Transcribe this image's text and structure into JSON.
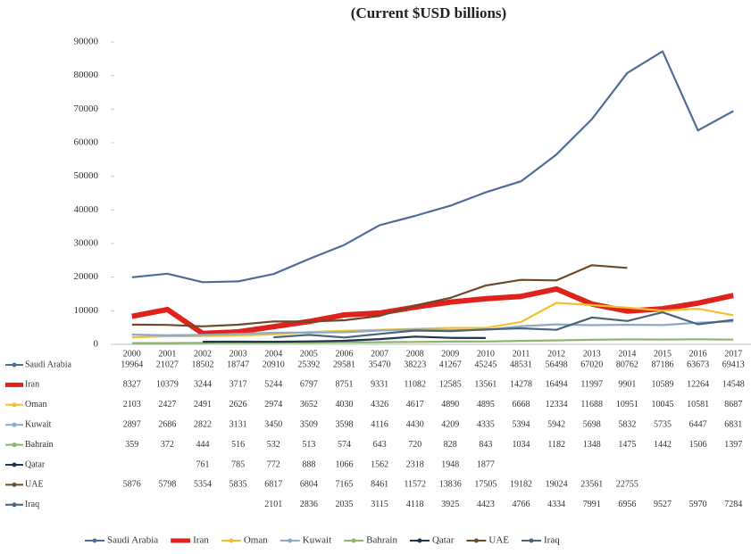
{
  "chart_data": {
    "type": "line",
    "title": "(Current $USD billions)",
    "categories": [
      "2000",
      "2001",
      "2002",
      "2003",
      "2004",
      "2005",
      "2006",
      "2007",
      "2008",
      "2009",
      "2010",
      "2011",
      "2012",
      "2013",
      "2014",
      "2015",
      "2016",
      "2017"
    ],
    "ylim": [
      0,
      90000
    ],
    "yticks": [
      0,
      10000,
      20000,
      30000,
      40000,
      50000,
      60000,
      70000,
      80000,
      90000
    ],
    "grid": false,
    "series": [
      {
        "name": "Saudi Arabia",
        "color": "#4f6d96",
        "values": [
          19964,
          21027,
          18502,
          18747,
          20910,
          25392,
          29581,
          35470,
          38223,
          41267,
          45245,
          48531,
          56498,
          67020,
          80762,
          87186,
          63673,
          69413
        ]
      },
      {
        "name": "Iran",
        "color": "#e0221d",
        "values": [
          8327,
          10379,
          3244,
          3717,
          5244,
          6797,
          8751,
          9331,
          11082,
          12585,
          13561,
          14278,
          16494,
          11997,
          9901,
          10589,
          12264,
          14548
        ]
      },
      {
        "name": "Oman",
        "color": "#f2c12e",
        "values": [
          2103,
          2427,
          2491,
          2626,
          2974,
          3652,
          4030,
          4326,
          4617,
          4890,
          4895,
          6668,
          12334,
          11688,
          10951,
          10045,
          10581,
          8687
        ]
      },
      {
        "name": "Kuwait",
        "color": "#8ea9c8",
        "values": [
          2897,
          2686,
          2822,
          3131,
          3450,
          3509,
          3598,
          4116,
          4430,
          4209,
          4335,
          5394,
          5942,
          5698,
          5832,
          5735,
          6447,
          6831
        ]
      },
      {
        "name": "Bahrain",
        "color": "#8fb56a",
        "values": [
          359,
          372,
          444,
          516,
          532,
          513,
          574,
          643,
          720,
          828,
          843,
          1034,
          1182,
          1348,
          1475,
          1442,
          1506,
          1397
        ]
      },
      {
        "name": "Qatar",
        "color": "#1f3550",
        "values": [
          null,
          null,
          761,
          785,
          772,
          888,
          1066,
          1562,
          2318,
          1948,
          1877,
          null,
          null,
          null,
          null,
          null,
          null,
          null
        ]
      },
      {
        "name": "UAE",
        "color": "#6b4a2a",
        "values": [
          5876,
          5798,
          5354,
          5835,
          6817,
          6804,
          7165,
          8461,
          11572,
          13836,
          17505,
          19182,
          19024,
          23561,
          22755,
          null,
          null,
          null
        ]
      },
      {
        "name": "Iraq",
        "color": "#4a6478",
        "values": [
          null,
          null,
          null,
          null,
          2101,
          2836,
          2035,
          3115,
          4118,
          3925,
          4423,
          4766,
          4334,
          7991,
          6956,
          9527,
          5970,
          7284
        ]
      }
    ]
  }
}
